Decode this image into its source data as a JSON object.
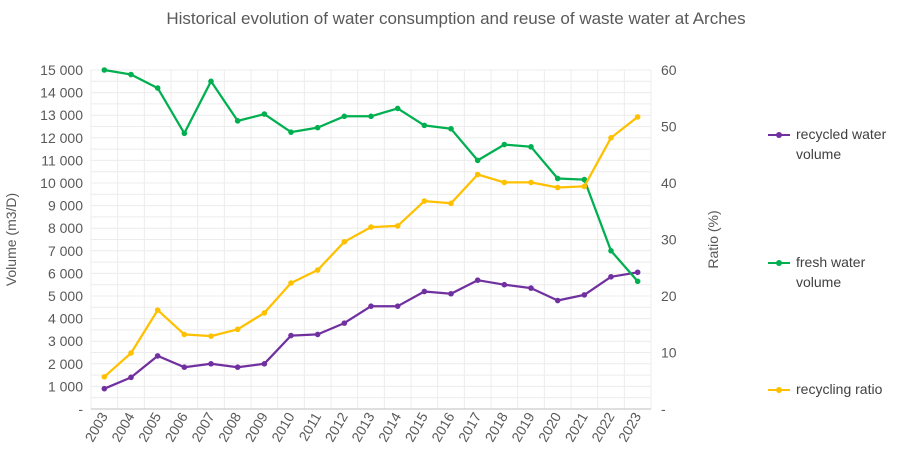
{
  "chart_data": {
    "type": "line",
    "title": "Historical evolution of water consumption and reuse of waste water at Arches",
    "xlabel": "",
    "ylabel": "Volume (m3/D)",
    "y2label": "Ratio (%)",
    "categories": [
      "2003",
      "2004",
      "2005",
      "2006",
      "2007",
      "2008",
      "2009",
      "2010",
      "2011",
      "2012",
      "2013",
      "2014",
      "2015",
      "2016",
      "2017",
      "2018",
      "2019",
      "2020",
      "2021",
      "2022",
      "2023"
    ],
    "ylim": [
      0,
      15000
    ],
    "y2lim": [
      0,
      60
    ],
    "yticks": [
      "-",
      "1 000",
      "2 000",
      "3 000",
      "4 000",
      "5 000",
      "6 000",
      "7 000",
      "8 000",
      "9 000",
      "10 000",
      "11 000",
      "12 000",
      "13 000",
      "14 000",
      "15 000"
    ],
    "y2ticks": [
      "-",
      "10",
      "20",
      "30",
      "40",
      "50",
      "60"
    ],
    "grid": true,
    "legend_position": "right",
    "series": [
      {
        "name": "recycled water volume",
        "axis": "left",
        "color": "#7030A0",
        "values": [
          900,
          1400,
          2350,
          1850,
          2000,
          1850,
          2000,
          3250,
          3300,
          3800,
          4550,
          4550,
          5200,
          5100,
          5700,
          5500,
          5350,
          4800,
          5050,
          5850,
          6050
        ]
      },
      {
        "name": "fresh water volume",
        "axis": "left",
        "color": "#00B050",
        "values": [
          15000,
          14800,
          14200,
          12200,
          14500,
          12750,
          13050,
          12250,
          12450,
          12950,
          12950,
          13300,
          12550,
          12400,
          11000,
          11700,
          11600,
          10200,
          10150,
          7000,
          5650
        ]
      },
      {
        "name": "recycling ratio",
        "axis": "right",
        "color": "#FFC000",
        "values": [
          5.7,
          9.9,
          17.5,
          13.2,
          12.9,
          14.1,
          17.0,
          22.3,
          24.6,
          29.6,
          32.2,
          32.4,
          36.8,
          36.4,
          41.5,
          40.1,
          40.1,
          39.2,
          39.4,
          48.0,
          51.7
        ]
      }
    ]
  }
}
